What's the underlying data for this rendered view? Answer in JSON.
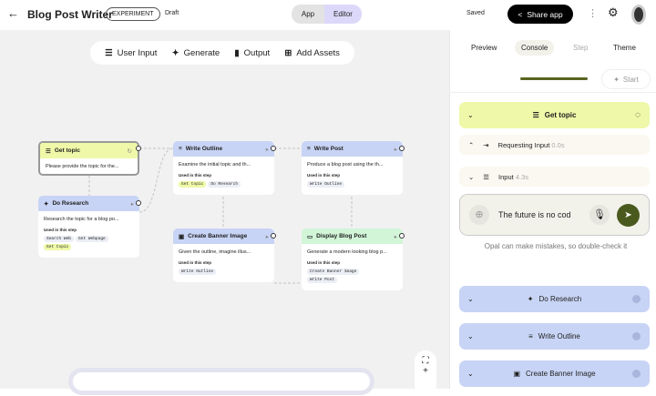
{
  "header": {
    "title": "Blog Post Writer",
    "badge": "EXPERIMENT",
    "status": "Draft",
    "modes": [
      "App",
      "Editor"
    ],
    "saved": "Saved",
    "share": "Share app"
  },
  "toolbar": [
    "User Input",
    "Generate",
    "Output",
    "Add Assets"
  ],
  "nodes": {
    "get_topic": {
      "title": "Get topic",
      "desc": "Please provide the topic for the..."
    },
    "do_research": {
      "title": "Do Research",
      "desc": "Research the topic for a blog po...",
      "used": "Used in this step",
      "chips": [
        "Search Web",
        "Get Webpage",
        "Get topic"
      ]
    },
    "write_outline": {
      "title": "Write Outline",
      "desc": "Examine the initial topic and th...",
      "used": "Used in this step",
      "chips": [
        "Get topic",
        "Do Research"
      ]
    },
    "write_post": {
      "title": "Write Post",
      "desc": "Produce a blog post using the th...",
      "used": "Used in this step",
      "chips": [
        "Write Outline"
      ]
    },
    "banner": {
      "title": "Create Banner Image",
      "desc": "Given the outline, imagine illus...",
      "used": "Used in this step",
      "chips": [
        "Write Outline"
      ]
    },
    "display": {
      "title": "Display Blog Post",
      "desc": "Generate a modern looking blog p...",
      "used": "Used in this step",
      "chips": [
        "Create Banner Image",
        "Write Post"
      ]
    }
  },
  "panel": {
    "tabs": [
      "Preview",
      "Console",
      "Step",
      "Theme"
    ],
    "start": "Start",
    "get_topic": "Get topic",
    "requesting": {
      "label": "Requesting Input",
      "time": "0.0s"
    },
    "input": {
      "label": "Input",
      "time": "4.3s"
    },
    "input_value": "The future is no cod",
    "disclaimer": "Opal can make mistakes, so double-check it",
    "steps": [
      "Do Research",
      "Write Outline",
      "Create Banner Image"
    ]
  },
  "colors": {
    "yellow": "#eef8a8",
    "blue": "#c8d4f5",
    "green": "#d2f5d8",
    "send": "#4a5a1e"
  }
}
